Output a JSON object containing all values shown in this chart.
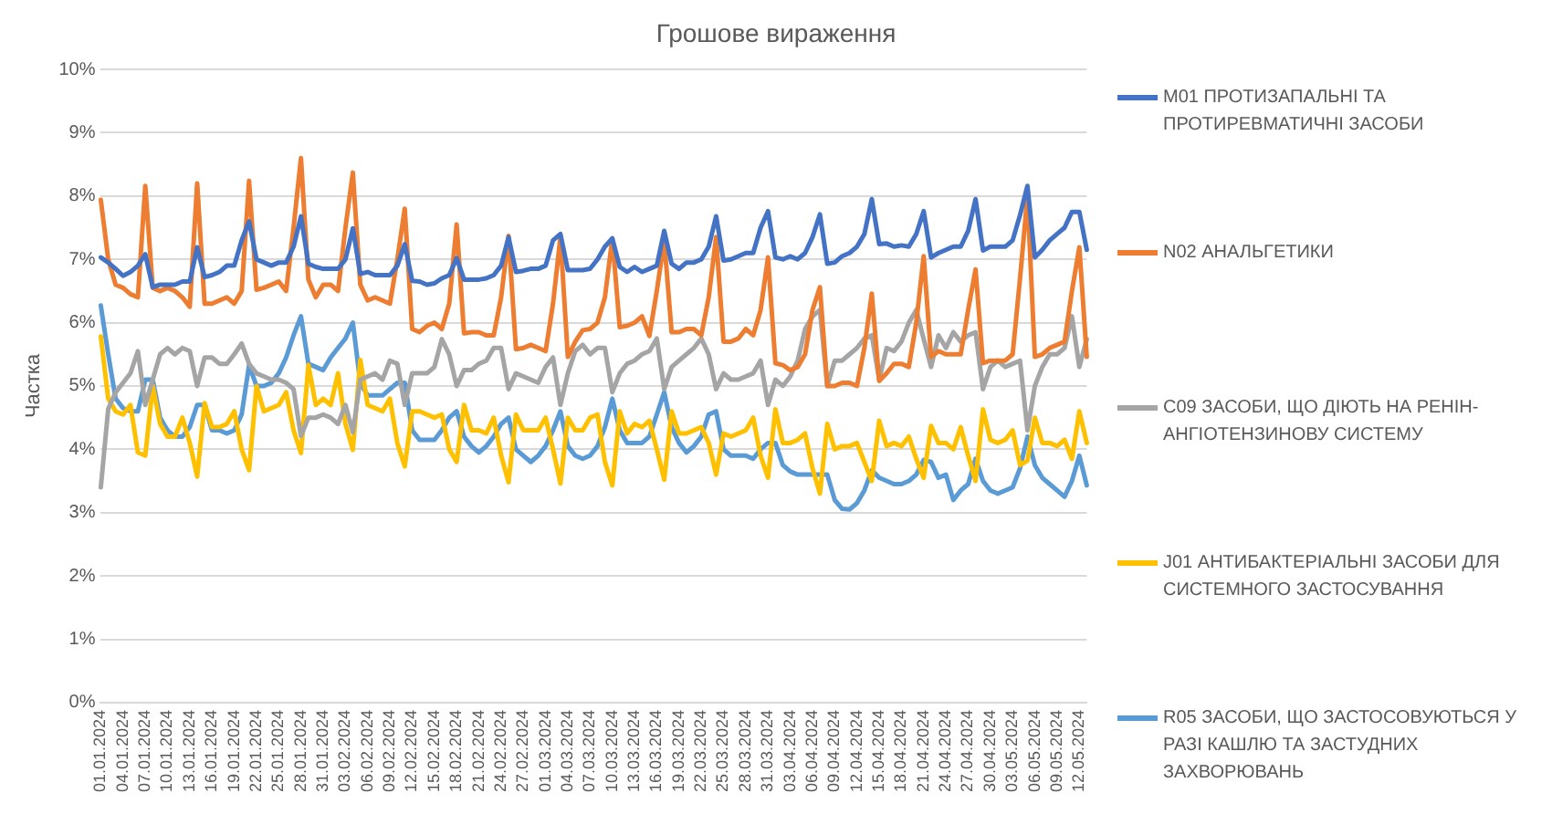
{
  "chart_data": {
    "type": "line",
    "title": "Грошове вираження",
    "ylabel": "Частка",
    "categories": [
      "01.01.2024",
      null,
      null,
      "04.01.2024",
      null,
      null,
      "07.01.2024",
      null,
      null,
      "10.01.2024",
      null,
      null,
      "13.01.2024",
      null,
      null,
      "16.01.2024",
      null,
      null,
      "19.01.2024",
      null,
      null,
      "22.01.2024",
      null,
      null,
      "25.01.2024",
      null,
      null,
      "28.01.2024",
      null,
      null,
      "31.01.2024",
      null,
      null,
      "03.02.2024",
      null,
      null,
      "06.02.2024",
      null,
      null,
      "09.02.2024",
      null,
      null,
      "12.02.2024",
      null,
      null,
      "15.02.2024",
      null,
      null,
      "18.02.2024",
      null,
      null,
      "21.02.2024",
      null,
      null,
      "24.02.2024",
      null,
      null,
      "27.02.2024",
      null,
      null,
      "01.03.2024",
      null,
      null,
      "04.03.2024",
      null,
      null,
      "07.03.2024",
      null,
      null,
      "10.03.2024",
      null,
      null,
      "13.03.2024",
      null,
      null,
      "16.03.2024",
      null,
      null,
      "19.03.2024",
      null,
      null,
      "22.03.2024",
      null,
      null,
      "25.03.2024",
      null,
      null,
      "28.03.2024",
      null,
      null,
      "31.03.2024",
      null,
      null,
      "03.04.2024",
      null,
      null,
      "06.04.2024",
      null,
      null,
      "09.04.2024",
      null,
      null,
      "12.04.2024",
      null,
      null,
      "15.04.2024",
      null,
      null,
      "18.04.2024",
      null,
      null,
      "21.04.2024",
      null,
      null,
      "24.04.2024",
      null,
      null,
      "27.04.2024",
      null,
      null,
      "30.04.2024",
      null,
      null,
      "03.05.2024",
      null,
      null,
      "06.05.2024",
      null,
      null,
      "09.05.2024",
      null,
      null,
      "12.05.2024",
      null
    ],
    "series": [
      {
        "name": "M01 ПРОТИЗАПАЛЬНІ ТА ПРОТИРЕВМАТИЧНІ ЗАСОБИ",
        "color": "#4472c4",
        "values": [
          7.03,
          6.95,
          6.85,
          6.74,
          6.8,
          6.9,
          7.08,
          6.56,
          6.6,
          6.6,
          6.6,
          6.65,
          6.65,
          7.19,
          6.72,
          6.75,
          6.8,
          6.9,
          6.9,
          7.3,
          7.6,
          7.0,
          6.95,
          6.9,
          6.95,
          6.95,
          7.2,
          7.68,
          6.93,
          6.88,
          6.85,
          6.85,
          6.85,
          7.0,
          7.49,
          6.77,
          6.8,
          6.75,
          6.75,
          6.75,
          6.9,
          7.24,
          6.66,
          6.65,
          6.6,
          6.62,
          6.7,
          6.75,
          7.02,
          6.68,
          6.68,
          6.68,
          6.7,
          6.75,
          6.9,
          7.35,
          6.8,
          6.82,
          6.85,
          6.85,
          6.9,
          7.3,
          7.4,
          6.83,
          6.83,
          6.83,
          6.85,
          7.0,
          7.2,
          7.33,
          6.88,
          6.8,
          6.88,
          6.8,
          6.85,
          6.9,
          7.45,
          6.93,
          6.85,
          6.95,
          6.95,
          7.0,
          7.2,
          7.68,
          6.98,
          7.0,
          7.05,
          7.1,
          7.1,
          7.5,
          7.76,
          7.03,
          7.0,
          7.05,
          7.0,
          7.1,
          7.35,
          7.71,
          6.93,
          6.95,
          7.05,
          7.1,
          7.2,
          7.4,
          7.95,
          7.24,
          7.25,
          7.2,
          7.22,
          7.2,
          7.4,
          7.76,
          7.03,
          7.1,
          7.15,
          7.2,
          7.2,
          7.45,
          7.95,
          7.14,
          7.2,
          7.2,
          7.2,
          7.3,
          7.7,
          8.16,
          7.03,
          7.15,
          7.3,
          7.4,
          7.5,
          7.75,
          7.75,
          7.15
        ]
      },
      {
        "name": "N02 АНАЛЬГЕТИКИ",
        "color": "#ed7d31",
        "values": [
          7.94,
          7.0,
          6.6,
          6.55,
          6.45,
          6.4,
          8.16,
          6.55,
          6.5,
          6.55,
          6.5,
          6.4,
          6.25,
          8.2,
          6.3,
          6.3,
          6.35,
          6.4,
          6.3,
          6.5,
          8.24,
          6.52,
          6.55,
          6.6,
          6.65,
          6.5,
          7.5,
          8.6,
          6.68,
          6.4,
          6.6,
          6.6,
          6.5,
          7.5,
          8.37,
          6.6,
          6.35,
          6.4,
          6.35,
          6.3,
          7.0,
          7.8,
          5.9,
          5.85,
          5.95,
          6.0,
          5.9,
          6.3,
          7.55,
          5.83,
          5.85,
          5.85,
          5.8,
          5.8,
          6.4,
          7.37,
          5.58,
          5.6,
          5.65,
          5.6,
          5.55,
          6.3,
          7.35,
          5.46,
          5.7,
          5.88,
          5.9,
          6.0,
          6.4,
          7.33,
          5.93,
          5.95,
          6.0,
          6.1,
          5.79,
          6.5,
          7.3,
          5.85,
          5.85,
          5.9,
          5.9,
          5.8,
          6.4,
          7.35,
          5.7,
          5.7,
          5.75,
          5.9,
          5.8,
          6.2,
          7.03,
          5.36,
          5.33,
          5.25,
          5.3,
          5.5,
          6.2,
          6.56,
          5.0,
          5.0,
          5.05,
          5.05,
          5.0,
          5.6,
          6.46,
          5.08,
          5.2,
          5.35,
          5.35,
          5.3,
          6.0,
          7.05,
          5.46,
          5.55,
          5.5,
          5.5,
          5.5,
          6.2,
          6.84,
          5.36,
          5.4,
          5.4,
          5.4,
          5.5,
          6.7,
          8.0,
          5.46,
          5.5,
          5.6,
          5.65,
          5.7,
          6.5,
          7.19,
          5.46
        ]
      },
      {
        "name": "C09 ЗАСОБИ, ЩО ДІЮТЬ НА РЕНІН-АНГІОТЕНЗИНОВУ СИСТЕМУ",
        "color": "#a5a5a5",
        "values": [
          3.4,
          4.64,
          4.9,
          5.05,
          5.2,
          5.55,
          4.7,
          5.1,
          5.5,
          5.6,
          5.5,
          5.6,
          5.55,
          5.0,
          5.45,
          5.45,
          5.35,
          5.35,
          5.5,
          5.67,
          5.35,
          5.2,
          5.15,
          5.1,
          5.1,
          5.05,
          4.95,
          4.21,
          4.5,
          4.5,
          4.55,
          4.5,
          4.4,
          4.7,
          4.27,
          5.1,
          5.15,
          5.2,
          5.1,
          5.4,
          5.35,
          4.7,
          5.2,
          5.2,
          5.2,
          5.3,
          5.74,
          5.5,
          5.0,
          5.25,
          5.25,
          5.35,
          5.4,
          5.6,
          5.6,
          4.95,
          5.2,
          5.15,
          5.1,
          5.05,
          5.3,
          5.45,
          4.7,
          5.2,
          5.55,
          5.65,
          5.5,
          5.6,
          5.6,
          4.9,
          5.2,
          5.35,
          5.4,
          5.5,
          5.55,
          5.75,
          4.95,
          5.3,
          5.4,
          5.5,
          5.6,
          5.75,
          5.5,
          4.95,
          5.2,
          5.1,
          5.1,
          5.15,
          5.2,
          5.4,
          4.7,
          5.1,
          5.0,
          5.15,
          5.4,
          5.9,
          6.1,
          6.2,
          5.0,
          5.4,
          5.4,
          5.5,
          5.6,
          5.75,
          5.8,
          5.1,
          5.6,
          5.55,
          5.7,
          6.0,
          6.2,
          5.74,
          5.3,
          5.8,
          5.6,
          5.85,
          5.7,
          5.8,
          5.85,
          4.95,
          5.3,
          5.4,
          5.3,
          5.35,
          5.4,
          4.3,
          5.0,
          5.3,
          5.5,
          5.5,
          5.6,
          6.1,
          5.3,
          5.74
        ]
      },
      {
        "name": "J01 АНТИБАКТЕРІАЛЬНІ ЗАСОБИ ДЛЯ СИСТЕМНОГО ЗАСТОСУВАННЯ",
        "color": "#ffc000",
        "values": [
          5.78,
          4.8,
          4.6,
          4.55,
          4.7,
          3.95,
          3.9,
          5.0,
          4.4,
          4.2,
          4.2,
          4.5,
          4.1,
          3.57,
          4.73,
          4.35,
          4.35,
          4.4,
          4.6,
          4.0,
          3.67,
          5.0,
          4.6,
          4.65,
          4.7,
          4.9,
          4.3,
          3.94,
          5.33,
          4.7,
          4.8,
          4.7,
          5.2,
          4.4,
          3.99,
          5.41,
          4.7,
          4.65,
          4.6,
          4.8,
          4.1,
          3.73,
          4.6,
          4.6,
          4.55,
          4.5,
          4.55,
          4.0,
          3.8,
          4.7,
          4.3,
          4.3,
          4.25,
          4.5,
          3.9,
          3.48,
          4.55,
          4.3,
          4.3,
          4.3,
          4.5,
          4.0,
          3.46,
          4.5,
          4.3,
          4.3,
          4.5,
          4.55,
          3.8,
          3.43,
          4.6,
          4.25,
          4.4,
          4.35,
          4.45,
          4.0,
          3.52,
          4.6,
          4.25,
          4.25,
          4.3,
          4.35,
          4.1,
          3.6,
          4.25,
          4.2,
          4.25,
          4.3,
          4.5,
          3.9,
          3.55,
          4.63,
          4.1,
          4.1,
          4.15,
          4.25,
          3.7,
          3.3,
          4.4,
          4.0,
          4.05,
          4.05,
          4.1,
          3.8,
          3.5,
          4.45,
          4.05,
          4.1,
          4.05,
          4.2,
          3.85,
          3.55,
          4.37,
          4.1,
          4.1,
          4.0,
          4.35,
          3.9,
          3.5,
          4.63,
          4.15,
          4.1,
          4.15,
          4.3,
          3.75,
          3.82,
          4.5,
          4.1,
          4.1,
          4.05,
          4.15,
          3.85,
          4.6,
          4.1
        ]
      },
      {
        "name": "R05 ЗАСОБИ, ЩО ЗАСТОСОВУЮТЬСЯ У РАЗІ КАШЛЮ ТА ЗАСТУДНИХ ЗАХВОРЮВАНЬ",
        "color": "#5b9bd5",
        "values": [
          6.27,
          5.5,
          4.8,
          4.65,
          4.6,
          4.6,
          5.1,
          5.1,
          4.5,
          4.3,
          4.2,
          4.2,
          4.35,
          4.7,
          4.7,
          4.3,
          4.3,
          4.25,
          4.3,
          4.55,
          5.33,
          5.0,
          5.0,
          5.05,
          5.2,
          5.45,
          5.8,
          6.1,
          5.35,
          5.3,
          5.25,
          5.45,
          5.6,
          5.75,
          6.0,
          5.05,
          4.85,
          4.85,
          4.85,
          4.95,
          5.05,
          5.05,
          4.3,
          4.15,
          4.15,
          4.15,
          4.3,
          4.5,
          4.6,
          4.2,
          4.05,
          3.95,
          4.05,
          4.2,
          4.4,
          4.5,
          4.0,
          3.9,
          3.8,
          3.9,
          4.05,
          4.3,
          4.6,
          4.05,
          3.9,
          3.85,
          3.9,
          4.05,
          4.35,
          4.8,
          4.3,
          4.1,
          4.1,
          4.1,
          4.2,
          4.55,
          4.9,
          4.35,
          4.1,
          3.95,
          4.05,
          4.2,
          4.55,
          4.6,
          4.0,
          3.9,
          3.9,
          3.9,
          3.85,
          4.0,
          4.1,
          4.1,
          3.75,
          3.65,
          3.6,
          3.6,
          3.6,
          3.6,
          3.6,
          3.2,
          3.06,
          3.05,
          3.15,
          3.35,
          3.67,
          3.55,
          3.5,
          3.45,
          3.45,
          3.5,
          3.6,
          3.83,
          3.8,
          3.55,
          3.6,
          3.2,
          3.35,
          3.45,
          3.85,
          3.5,
          3.35,
          3.3,
          3.35,
          3.4,
          3.7,
          4.2,
          3.75,
          3.55,
          3.45,
          3.35,
          3.25,
          3.5,
          3.9,
          3.43
        ]
      }
    ],
    "ylim": [
      0,
      10
    ],
    "yticks": [
      {
        "value": 0,
        "label": "0%"
      },
      {
        "value": 1,
        "label": "1%"
      },
      {
        "value": 2,
        "label": "2%"
      },
      {
        "value": 3,
        "label": "3%"
      },
      {
        "value": 4,
        "label": "4%"
      },
      {
        "value": 5,
        "label": "5%"
      },
      {
        "value": 6,
        "label": "6%"
      },
      {
        "value": 7,
        "label": "7%"
      },
      {
        "value": 8,
        "label": "8%"
      },
      {
        "value": 9,
        "label": "9%"
      },
      {
        "value": 10,
        "label": "10%"
      }
    ],
    "grid": "y",
    "legend": "right",
    "marker": "none",
    "line_style": "solid"
  }
}
